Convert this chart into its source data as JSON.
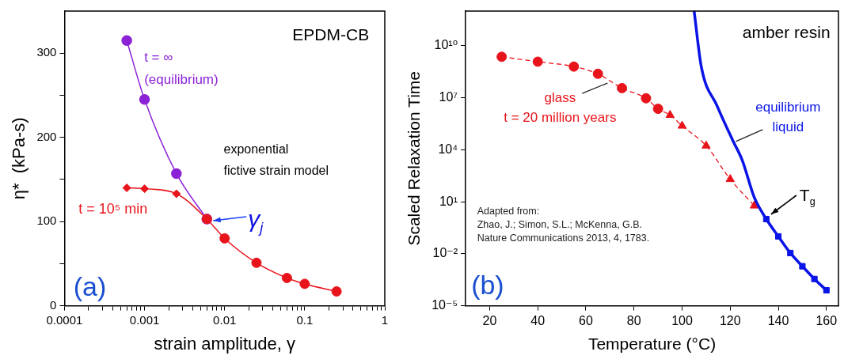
{
  "chart_data": [
    {
      "type": "line",
      "xlabel": "strain amplitude, γ",
      "ylabel": "η*  (kPa-s)",
      "log": "x",
      "xlim": [
        0.0001,
        1
      ],
      "xticks": [
        0.0001,
        {
          "value": 0.0002,
          "label": null
        },
        {
          "value": 0.0003,
          "label": null
        },
        {
          "value": 0.0004,
          "label": null
        },
        {
          "value": 0.0005,
          "label": null
        },
        {
          "value": 0.0006,
          "label": null
        },
        {
          "value": 0.0007,
          "label": null
        },
        {
          "value": 0.0008,
          "label": null
        },
        {
          "value": 0.0009,
          "label": null
        },
        0.001,
        {
          "value": 0.002,
          "label": null
        },
        {
          "value": 0.003,
          "label": null
        },
        {
          "value": 0.004,
          "label": null
        },
        {
          "value": 0.005,
          "label": null
        },
        {
          "value": 0.006,
          "label": null
        },
        {
          "value": 0.007,
          "label": null
        },
        {
          "value": 0.008,
          "label": null
        },
        {
          "value": 0.009,
          "label": null
        },
        0.01,
        {
          "value": 0.02,
          "label": null
        },
        {
          "value": 0.03,
          "label": null
        },
        {
          "value": 0.04,
          "label": null
        },
        {
          "value": 0.05,
          "label": null
        },
        {
          "value": 0.06,
          "label": null
        },
        {
          "value": 0.07,
          "label": null
        },
        {
          "value": 0.08,
          "label": null
        },
        {
          "value": 0.09,
          "label": null
        },
        0.1,
        {
          "value": 0.2,
          "label": null
        },
        {
          "value": 0.3,
          "label": null
        },
        {
          "value": 0.4,
          "label": null
        },
        {
          "value": 0.5,
          "label": null
        },
        {
          "value": 0.6,
          "label": null
        },
        {
          "value": 0.7,
          "label": null
        },
        {
          "value": 0.8,
          "label": null
        },
        {
          "value": 0.9,
          "label": null
        },
        1
      ],
      "ylim": [
        0,
        350
      ],
      "yticks": [
        0,
        {
          "value": 50,
          "label": null
        },
        100,
        {
          "value": 150,
          "label": null
        },
        200,
        {
          "value": 250,
          "label": null
        },
        300
      ],
      "series": [
        {
          "type": "line",
          "color": "#8b22d6",
          "marker": "circle",
          "x": [
            0.0006,
            0.001,
            0.0025,
            0.006
          ],
          "values": [
            315,
            245,
            157,
            103
          ]
        },
        {
          "type": "line",
          "color": "#e8141c",
          "marker": "none",
          "x": [
            0.0006,
            0.001,
            0.0025,
            0.006,
            0.01,
            0.025,
            0.06,
            0.1,
            0.25
          ],
          "values": [
            140,
            139,
            133,
            103,
            80,
            51,
            33,
            26,
            17
          ]
        },
        {
          "type": "scatter",
          "color": "#e8141c",
          "marker": "diamond",
          "x": [
            0.0006,
            0.001,
            0.0025
          ],
          "values": [
            140,
            139,
            133
          ]
        },
        {
          "type": "scatter",
          "color": "#e8141c",
          "marker": "circle",
          "x": [
            0.006,
            0.01,
            0.025,
            0.06,
            0.1,
            0.25
          ],
          "values": [
            103,
            80,
            51,
            33,
            26,
            17
          ]
        }
      ],
      "annotations": [
        "EPDM-CB",
        "t = ∞\n(equilibrium)",
        "exponential\nfictive strain model",
        "t = 10⁵ min",
        {
          "text": "γ$_{j}$",
          "x": 0.006,
          "y": 103
        },
        "(a)"
      ]
    },
    {
      "type": "line",
      "xlabel": "Temperature (°C)",
      "ylabel": "Scaled Relaxation Time",
      "log": "y",
      "xlim": [
        10,
        165
      ],
      "xticks": [
        20,
        40,
        60,
        80,
        100,
        120,
        140,
        160
      ],
      "ylim": [
        1e-05,
        1000000000000
      ],
      "yticks": [
        {
          "value": 1e-05,
          "label": "10⁻⁵"
        },
        {
          "value": 0.01,
          "label": "10⁻²"
        },
        {
          "value": 10,
          "label": "10¹"
        },
        {
          "value": 10000,
          "label": "10⁴"
        },
        {
          "value": 10000000,
          "label": "10⁷"
        },
        {
          "value": 10000000000,
          "label": "10¹⁰"
        }
      ],
      "series": [
        {
          "type": "line",
          "color": "#e8141c",
          "marker": "none",
          "line_style": "dashed",
          "x": [
            25,
            40,
            55,
            65,
            75,
            85,
            90,
            95,
            100,
            110,
            120,
            130
          ],
          "values": [
            2300000000.0,
            1200000000.0,
            630000000.0,
            240000000.0,
            36000000.0,
            9300000.0,
            2300000.0,
            1000000.0,
            240000.0,
            17000.0,
            200,
            5.9
          ]
        },
        {
          "type": "scatter",
          "color": "#e8141c",
          "marker": "circle",
          "x": [
            25,
            40,
            55,
            65,
            75,
            85,
            90
          ],
          "values": [
            2300000000.0,
            1200000000.0,
            630000000.0,
            240000000.0,
            36000000.0,
            9300000.0,
            2300000.0
          ]
        },
        {
          "type": "scatter",
          "color": "#e8141c",
          "marker": "triangle",
          "x": [
            95,
            100,
            110,
            120,
            130
          ],
          "values": [
            1000000.0,
            240000.0,
            17000.0,
            200,
            5.9
          ]
        },
        {
          "type": "line",
          "color": "#0a14e6",
          "marker": "none",
          "x": [
            105,
            108,
            114.5,
            121,
            125,
            130,
            135,
            140,
            145,
            150,
            155,
            160
          ],
          "values": [
            1000000000000.0,
            600000000.0,
            3500000.0,
            36000.0,
            2500,
            18,
            1,
            0.1,
            0.011,
            0.0019,
            0.00035,
            7.8e-05
          ]
        },
        {
          "type": "scatter",
          "color": "#0a14e6",
          "marker": "square",
          "x": [
            135,
            140,
            145,
            150,
            155,
            160
          ],
          "values": [
            1,
            0.1,
            0.011,
            0.0019,
            0.00035,
            7.8e-05
          ]
        }
      ],
      "annotations": [
        "amber resin",
        {
          "text": "glass\nt = 20 million years",
          "x": 69,
          "y": 70000000.0
        },
        {
          "text": "equilibrium\nliquid",
          "x": 121,
          "y": 30000.0
        },
        {
          "text": "T$_{g}$",
          "x": 135,
          "y": 1
        },
        "Adapted from:\nZhao, J.; Simon, S.L.; McKenna, G.B.\nNature Communications 2013, 4, 1783.",
        "(b)"
      ]
    }
  ]
}
